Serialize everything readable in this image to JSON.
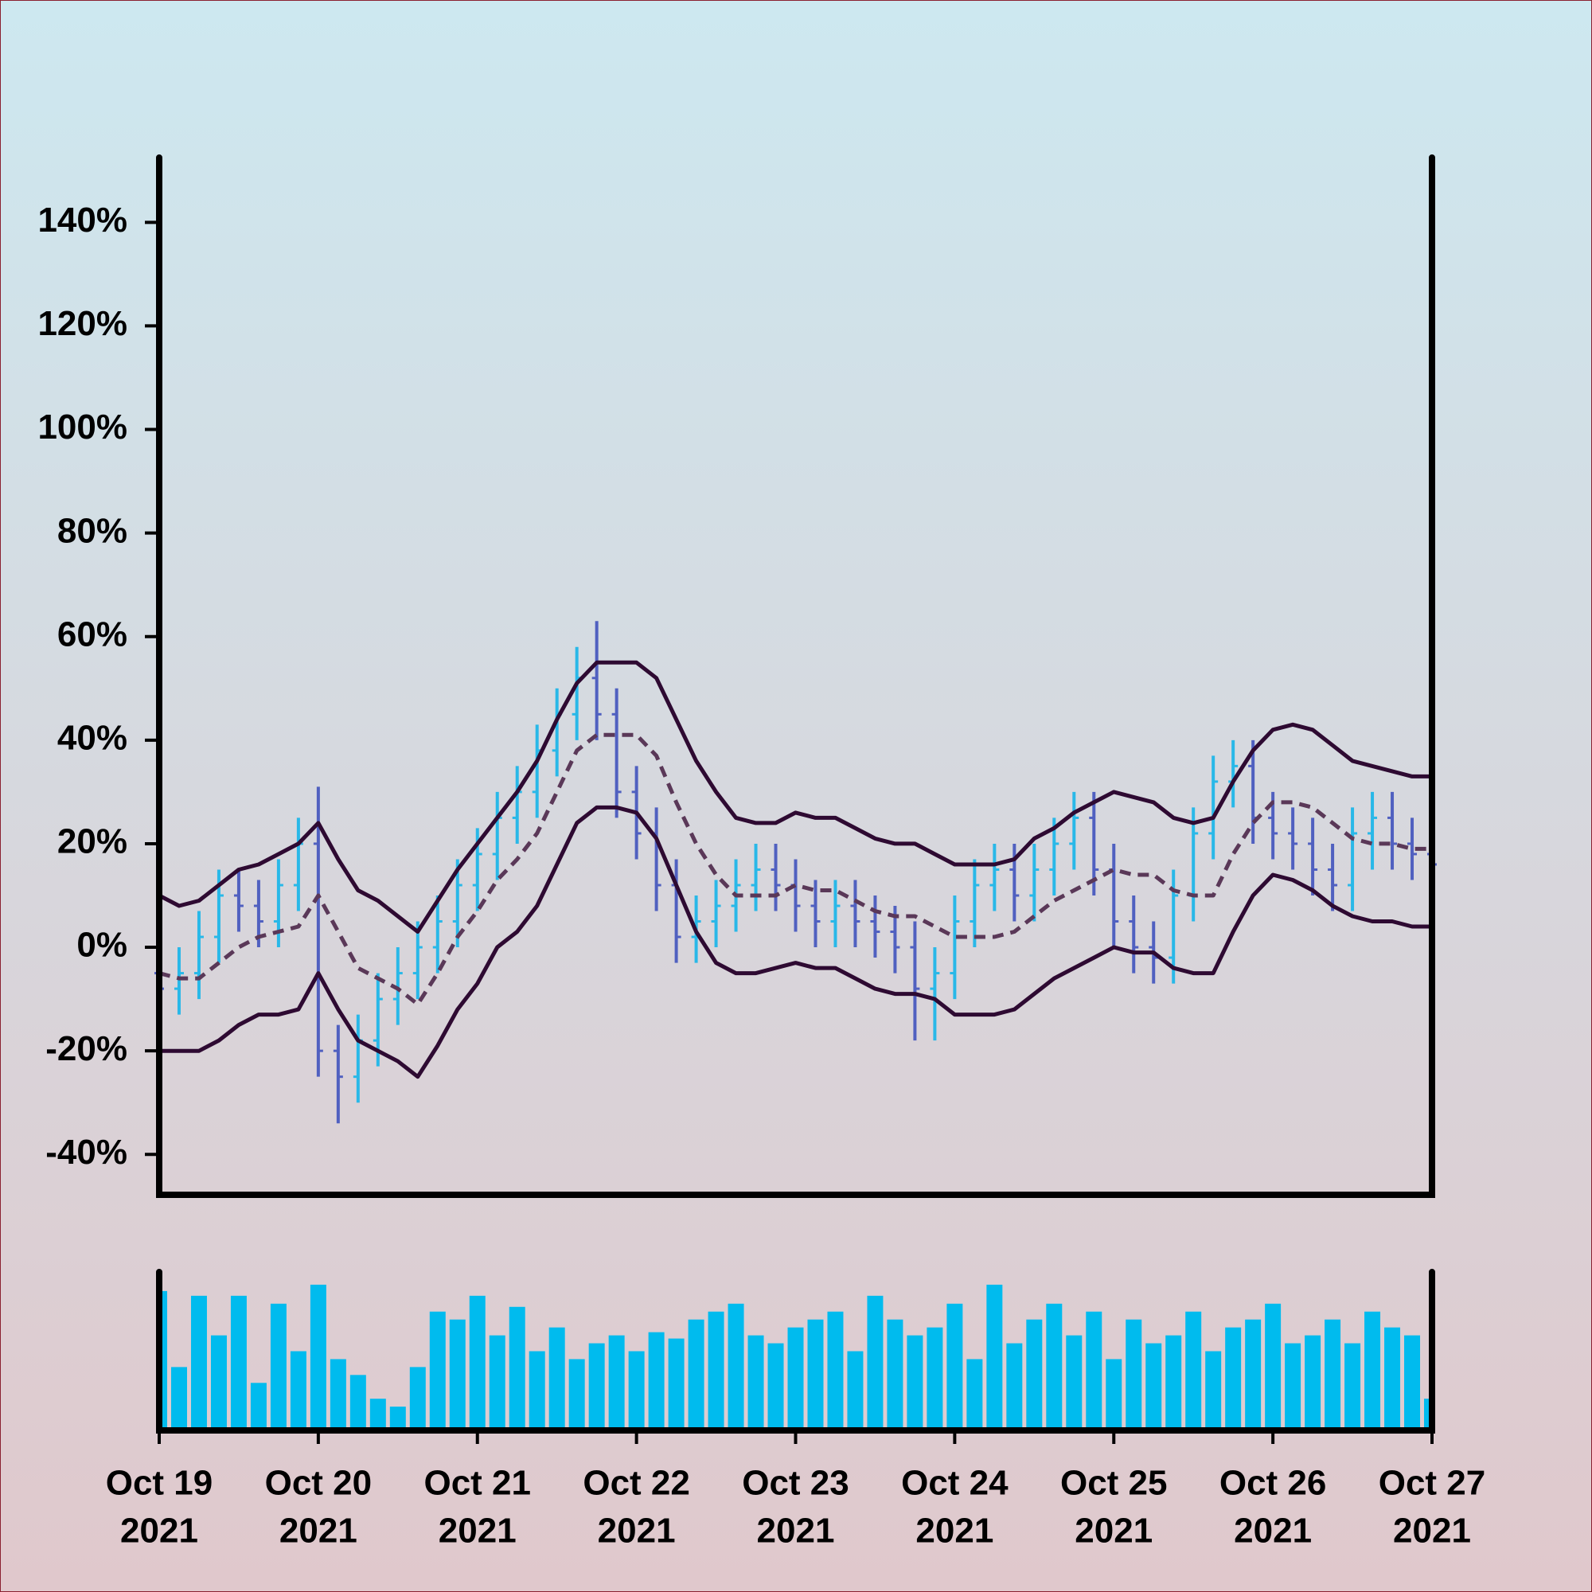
{
  "chart_data": [
    {
      "type": "ohlc",
      "x": [
        "2021-10-19T00:00",
        "2021-10-19T03:00",
        "2021-10-19T06:00",
        "2021-10-19T09:00",
        "2021-10-19T12:00",
        "2021-10-19T15:00",
        "2021-10-19T18:00",
        "2021-10-19T21:00",
        "2021-10-20T00:00",
        "2021-10-20T03:00",
        "2021-10-20T06:00",
        "2021-10-20T09:00",
        "2021-10-20T12:00",
        "2021-10-20T15:00",
        "2021-10-20T18:00",
        "2021-10-20T21:00",
        "2021-10-21T00:00",
        "2021-10-21T03:00",
        "2021-10-21T06:00",
        "2021-10-21T09:00",
        "2021-10-21T12:00",
        "2021-10-21T15:00",
        "2021-10-21T18:00",
        "2021-10-21T21:00",
        "2021-10-22T00:00",
        "2021-10-22T03:00",
        "2021-10-22T06:00",
        "2021-10-22T09:00",
        "2021-10-22T12:00",
        "2021-10-22T15:00",
        "2021-10-22T18:00",
        "2021-10-22T21:00",
        "2021-10-23T00:00",
        "2021-10-23T03:00",
        "2021-10-23T06:00",
        "2021-10-23T09:00",
        "2021-10-23T12:00",
        "2021-10-23T15:00",
        "2021-10-23T18:00",
        "2021-10-23T21:00",
        "2021-10-24T00:00",
        "2021-10-24T03:00",
        "2021-10-24T06:00",
        "2021-10-24T09:00",
        "2021-10-24T12:00",
        "2021-10-24T15:00",
        "2021-10-24T18:00",
        "2021-10-24T21:00",
        "2021-10-25T00:00",
        "2021-10-25T03:00",
        "2021-10-25T06:00",
        "2021-10-25T09:00",
        "2021-10-25T12:00",
        "2021-10-25T15:00",
        "2021-10-25T18:00",
        "2021-10-25T21:00",
        "2021-10-26T00:00",
        "2021-10-26T03:00",
        "2021-10-26T06:00",
        "2021-10-26T09:00",
        "2021-10-26T12:00",
        "2021-10-26T15:00",
        "2021-10-26T18:00",
        "2021-10-26T21:00",
        "2021-10-27T00:00"
      ],
      "open": [
        -5,
        -8,
        -5,
        2,
        10,
        8,
        5,
        12,
        20,
        -20,
        -25,
        -18,
        -10,
        -5,
        0,
        5,
        12,
        18,
        25,
        30,
        38,
        45,
        52,
        45,
        30,
        22,
        12,
        2,
        5,
        8,
        12,
        15,
        12,
        8,
        5,
        8,
        5,
        3,
        0,
        -8,
        -5,
        5,
        12,
        15,
        10,
        15,
        20,
        25,
        15,
        5,
        0,
        -2,
        10,
        22,
        32,
        35,
        25,
        22,
        20,
        15,
        12,
        22,
        25,
        20,
        18
      ],
      "high": [
        0,
        0,
        7,
        15,
        15,
        13,
        17,
        25,
        31,
        -15,
        -13,
        -5,
        0,
        5,
        10,
        17,
        23,
        30,
        35,
        43,
        50,
        58,
        63,
        50,
        35,
        27,
        17,
        10,
        13,
        17,
        20,
        20,
        17,
        13,
        13,
        13,
        10,
        8,
        5,
        0,
        10,
        17,
        20,
        20,
        20,
        25,
        30,
        30,
        20,
        10,
        5,
        15,
        27,
        37,
        40,
        40,
        30,
        27,
        25,
        20,
        27,
        30,
        30,
        25,
        24
      ],
      "low": [
        -13,
        -13,
        -10,
        -3,
        3,
        0,
        0,
        7,
        -25,
        -34,
        -30,
        -23,
        -15,
        -10,
        -5,
        0,
        7,
        13,
        20,
        25,
        33,
        40,
        40,
        25,
        17,
        7,
        -3,
        -3,
        0,
        3,
        7,
        7,
        3,
        0,
        0,
        0,
        -2,
        -5,
        -18,
        -18,
        -10,
        0,
        7,
        5,
        5,
        10,
        15,
        10,
        0,
        -5,
        -7,
        -7,
        5,
        17,
        27,
        20,
        17,
        15,
        10,
        7,
        7,
        15,
        15,
        13,
        6
      ],
      "close": [
        -8,
        -5,
        2,
        10,
        8,
        5,
        12,
        20,
        -20,
        -25,
        -18,
        -10,
        -5,
        0,
        5,
        12,
        18,
        25,
        30,
        38,
        45,
        52,
        45,
        30,
        22,
        12,
        2,
        5,
        8,
        12,
        15,
        12,
        8,
        5,
        8,
        5,
        3,
        0,
        -8,
        -5,
        5,
        12,
        15,
        10,
        15,
        20,
        25,
        15,
        5,
        0,
        -2,
        10,
        22,
        32,
        35,
        25,
        22,
        20,
        15,
        12,
        22,
        25,
        20,
        18,
        16
      ],
      "upper": [
        10,
        8,
        9,
        12,
        15,
        16,
        18,
        20,
        24,
        17,
        11,
        9,
        6,
        3,
        9,
        15,
        20,
        25,
        30,
        36,
        44,
        51,
        55,
        55,
        55,
        52,
        44,
        36,
        30,
        25,
        24,
        24,
        26,
        25,
        25,
        23,
        21,
        20,
        20,
        18,
        16,
        16,
        16,
        17,
        21,
        23,
        26,
        28,
        30,
        29,
        28,
        25,
        24,
        25,
        32,
        38,
        42,
        43,
        42,
        39,
        36,
        35,
        34,
        33,
        33
      ],
      "middle": [
        -5,
        -6,
        -6,
        -3,
        0,
        2,
        3,
        4,
        10,
        3,
        -4,
        -6,
        -8,
        -11,
        -5,
        2,
        7,
        13,
        17,
        22,
        30,
        38,
        41,
        41,
        41,
        37,
        28,
        20,
        14,
        10,
        10,
        10,
        12,
        11,
        11,
        9,
        7,
        6,
        6,
        4,
        2,
        2,
        2,
        3,
        6,
        9,
        11,
        13,
        15,
        14,
        14,
        11,
        10,
        10,
        18,
        24,
        28,
        28,
        27,
        24,
        21,
        20,
        20,
        19,
        19
      ],
      "lower": [
        -20,
        -20,
        -20,
        -18,
        -15,
        -13,
        -13,
        -12,
        -5,
        -12,
        -18,
        -20,
        -22,
        -25,
        -19,
        -12,
        -7,
        0,
        3,
        8,
        16,
        24,
        27,
        27,
        26,
        21,
        12,
        3,
        -3,
        -5,
        -5,
        -4,
        -3,
        -4,
        -4,
        -6,
        -8,
        -9,
        -9,
        -10,
        -13,
        -13,
        -13,
        -12,
        -9,
        -6,
        -4,
        -2,
        0,
        -1,
        -1,
        -4,
        -5,
        -5,
        3,
        10,
        14,
        13,
        11,
        8,
        6,
        5,
        5,
        4,
        4
      ],
      "up_color": "#29b8e8",
      "down_color": "#5060c0",
      "band_color": "#2e0a32",
      "middle_color": "#5a3858",
      "xlim": [
        "2021-10-19T00:00",
        "2021-10-27T00:00"
      ],
      "xticks": [
        {
          "value": "2021-10-19T00:00",
          "label": [
            "Oct 19",
            "2021"
          ]
        },
        {
          "value": "2021-10-20T00:00",
          "label": [
            "Oct 20",
            "2021"
          ]
        },
        {
          "value": "2021-10-21T00:00",
          "label": [
            "Oct 21",
            "2021"
          ]
        },
        {
          "value": "2021-10-22T00:00",
          "label": [
            "Oct 22",
            "2021"
          ]
        },
        {
          "value": "2021-10-23T00:00",
          "label": [
            "Oct 23",
            "2021"
          ]
        },
        {
          "value": "2021-10-24T00:00",
          "label": [
            "Oct 24",
            "2021"
          ]
        },
        {
          "value": "2021-10-25T00:00",
          "label": [
            "Oct 25",
            "2021"
          ]
        },
        {
          "value": "2021-10-26T00:00",
          "label": [
            "Oct 26",
            "2021"
          ]
        },
        {
          "value": "2021-10-27T00:00",
          "label": [
            "Oct 27",
            "2021"
          ]
        }
      ],
      "ylim": [
        -47.8,
        152.5
      ],
      "yticks": [
        {
          "value": -40,
          "label": "-40%"
        },
        {
          "value": -20,
          "label": "-20%"
        },
        {
          "value": 0,
          "label": "0%"
        },
        {
          "value": 20,
          "label": "20%"
        },
        {
          "value": 40,
          "label": "40%"
        },
        {
          "value": 60,
          "label": "60%"
        },
        {
          "value": 80,
          "label": "80%"
        },
        {
          "value": 100,
          "label": "100%"
        },
        {
          "value": 120,
          "label": "120%"
        },
        {
          "value": 140,
          "label": "140%"
        }
      ]
    },
    {
      "type": "bar",
      "color": "#00bbee",
      "ylim": [
        0,
        100
      ],
      "values": [
        88,
        40,
        85,
        60,
        85,
        30,
        80,
        50,
        92,
        45,
        35,
        20,
        15,
        40,
        75,
        70,
        85,
        60,
        78,
        50,
        65,
        45,
        55,
        60,
        50,
        62,
        58,
        70,
        75,
        80,
        60,
        55,
        65,
        70,
        75,
        50,
        85,
        70,
        60,
        65,
        80,
        45,
        92,
        55,
        70,
        80,
        60,
        75,
        45,
        70,
        55,
        60,
        75,
        50,
        65,
        70,
        80,
        55,
        60,
        70,
        55,
        75,
        65,
        60,
        20
      ]
    }
  ]
}
